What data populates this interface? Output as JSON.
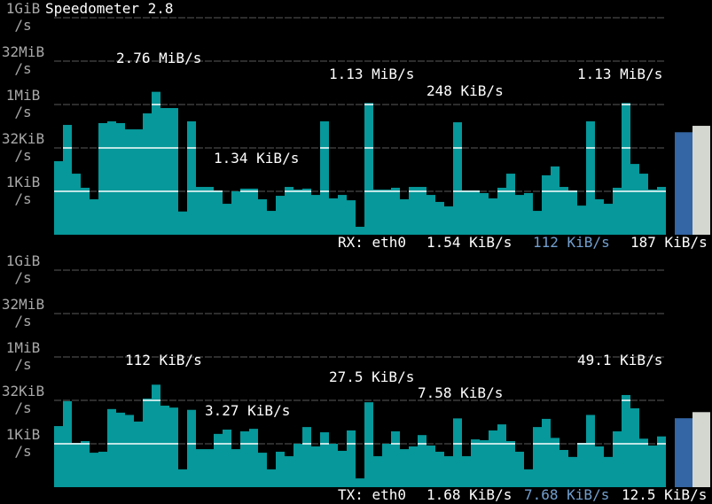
{
  "title": "Speedometer 2.8",
  "chart_data": [
    {
      "type": "bar",
      "name": "RX: eth0",
      "ylog": true,
      "ylim": [
        0.03125,
        1048576
      ],
      "yticks": [
        {
          "value": 1,
          "label": "1KiB\n/s"
        },
        {
          "value": 32,
          "label": "32KiB\n/s"
        },
        {
          "value": 1024,
          "label": "1MiB\n/s"
        },
        {
          "value": 32768,
          "label": "32MiB\n/s"
        },
        {
          "value": 1048576,
          "label": "1GiB\n/s"
        }
      ],
      "color": "#06989a",
      "values": [
        11.1,
        201,
        4.1,
        1.33,
        0.53,
        232,
        267,
        232,
        141,
        141,
        505,
        2826,
        771,
        771,
        0.2,
        267,
        1.42,
        1.42,
        1.07,
        0.37,
        1,
        1.24,
        1.24,
        0.53,
        0.21,
        0.7,
        1.42,
        1.15,
        1.24,
        0.75,
        267,
        0.57,
        0.75,
        0.49,
        0.059,
        1157,
        1.15,
        1.15,
        1.33,
        0.53,
        1.42,
        1.42,
        0.75,
        0.43,
        0.3,
        248,
        1.07,
        1.07,
        0.87,
        0.57,
        1.33,
        4.1,
        0.75,
        0.87,
        0.21,
        3.6,
        7.3,
        1.42,
        1.07,
        0.32,
        267,
        0.53,
        0.37,
        1.33,
        1157,
        8.9,
        4.1,
        1.15,
        1.42
      ],
      "annotations": [
        "2.76 MiB/s",
        "1.13 MiB/s",
        "1.13 MiB/s",
        "248 KiB/s",
        "1.34 KiB/s"
      ],
      "current": "1.54 KiB/s",
      "gauges": [
        {
          "value": 112,
          "label": "112 KiB/s",
          "color": "#3465a4"
        },
        {
          "value": 187,
          "label": "187 KiB/s",
          "color": "#d3d7cf"
        }
      ]
    },
    {
      "type": "bar",
      "name": "TX: eth0",
      "ylog": true,
      "ylim": [
        0.03125,
        1048576
      ],
      "yticks": [
        {
          "value": 1,
          "label": "1KiB\n/s"
        },
        {
          "value": 32,
          "label": "32KiB\n/s"
        },
        {
          "value": 1024,
          "label": "1MiB\n/s"
        },
        {
          "value": 32768,
          "label": "32MiB\n/s"
        },
        {
          "value": 1048576,
          "label": "1GiB\n/s"
        }
      ],
      "color": "#06989a",
      "values": [
        4.1,
        30,
        1.07,
        1.24,
        0.49,
        0.53,
        16,
        12,
        10,
        5.9,
        37,
        112,
        21,
        18,
        0.13,
        15,
        0.65,
        0.65,
        2.2,
        3.1,
        0.65,
        2.7,
        3.3,
        0.49,
        0.13,
        0.53,
        0.37,
        1,
        3.8,
        0.81,
        2.5,
        1,
        0.57,
        2.9,
        0.063,
        27.5,
        0.37,
        1,
        2.7,
        0.65,
        0.81,
        2,
        0.87,
        0.53,
        0.37,
        7.58,
        0.37,
        1.42,
        1.33,
        2.9,
        4.7,
        1.24,
        0.53,
        0.13,
        3.8,
        7.3,
        1.6,
        0.61,
        0.35,
        1.07,
        10,
        0.81,
        0.35,
        2.7,
        49.1,
        17,
        1.5,
        0.87,
        1.8
      ],
      "annotations": [
        "112 KiB/s",
        "49.1 KiB/s",
        "27.5 KiB/s",
        "7.58 KiB/s",
        "3.27 KiB/s"
      ],
      "current": "1.68 KiB/s",
      "gauges": [
        {
          "value": 7.68,
          "label": "7.68 KiB/s",
          "color": "#3465a4"
        },
        {
          "value": 12.5,
          "label": "12.5 KiB/s",
          "color": "#d3d7cf"
        }
      ]
    }
  ]
}
